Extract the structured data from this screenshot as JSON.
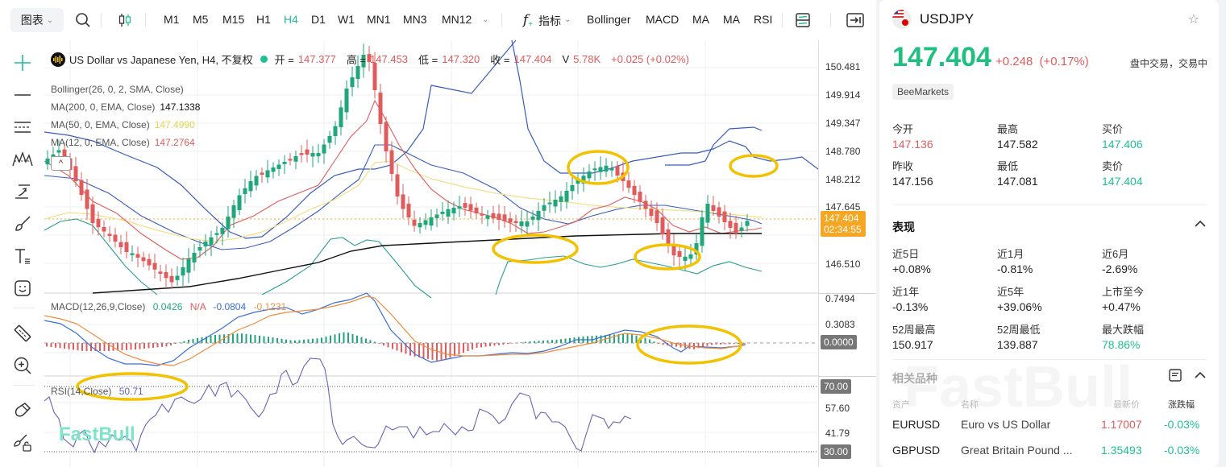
{
  "toolbar": {
    "chart_menu": "图表",
    "timeframes": [
      "M1",
      "M5",
      "M15",
      "H1",
      "H4",
      "D1",
      "W1",
      "MN1",
      "MN3",
      "MN12"
    ],
    "active_timeframe": "H4",
    "indicators_label": "指标",
    "indicator_shortcuts": [
      "Bollinger",
      "MACD",
      "MA",
      "MA",
      "RSI"
    ]
  },
  "legend": {
    "title": "US Dollar vs Japanese Yen, H4, 不复权",
    "open_label": "开 =",
    "open": "147.377",
    "high_label": "高 =",
    "high": "147.453",
    "low_label": "低 =",
    "low": "147.320",
    "close_label": "收 =",
    "close": "147.404",
    "volume_label": "V",
    "volume": "5.78K",
    "change": "+0.025 (+0.02%)"
  },
  "indicators": {
    "bollinger": "Bollinger(26, 0, 2, SMA, Close)",
    "ma200": {
      "label": "MA(200, 0, EMA, Close)",
      "value": "147.1338",
      "color": "#111111"
    },
    "ma50": {
      "label": "MA(50, 0, EMA, Close)",
      "value": "147.4990",
      "color": "#f2e063"
    },
    "ma12": {
      "label": "MA(12, 0, EMA, Close)",
      "value": "147.2764",
      "color": "#e05c5c"
    },
    "macd": {
      "label": "MACD(12,26,9,Close)",
      "hist": "0.0426",
      "na": "N/A",
      "macd": "-0.0804",
      "signal": "-0.1231"
    },
    "rsi": {
      "label": "RSI(14,Close)",
      "value": "50.71"
    }
  },
  "price_axis": {
    "labels": [
      "150.481",
      "149.914",
      "149.347",
      "148.780",
      "148.212",
      "147.645",
      "146.510"
    ],
    "current_price": "147.404",
    "countdown": "02:34:55",
    "macd_labels": [
      "0.7494",
      "0.3083"
    ],
    "macd_zero": "0.0000",
    "rsi_labels": [
      "57.60",
      "41.79"
    ],
    "rsi_upper": "70.00",
    "rsi_lower": "30.00"
  },
  "watermark": "FastBull",
  "colors": {
    "up": "#1fa67a",
    "down": "#e05c5c",
    "accent": "#1fbf94",
    "bollinger": "#3a5bbf",
    "bollinger_lower": "#2a9d8f",
    "annotation": "#f2c200",
    "price_badge": "#f5a623"
  },
  "chart_data": {
    "type": "candlestick",
    "title": "US Dollar vs Japanese Yen, H4",
    "symbol": "USDJPY",
    "timeframe": "H4",
    "ylim": [
      146.2,
      150.8
    ],
    "yticks": [
      146.51,
      147.645,
      148.212,
      148.78,
      149.347,
      149.914,
      150.481
    ],
    "last_ohlc": {
      "open": 147.377,
      "high": 147.453,
      "low": 147.32,
      "close": 147.404,
      "volume": "5.78K"
    },
    "overlays": [
      {
        "name": "MA(200, EMA)",
        "last": 147.1338
      },
      {
        "name": "MA(50, EMA)",
        "last": 147.499
      },
      {
        "name": "MA(12, EMA)",
        "last": 147.2764
      },
      {
        "name": "Bollinger(26,2)"
      }
    ],
    "subcharts": [
      {
        "name": "MACD(12,26,9)",
        "values": {
          "hist": 0.0426,
          "macd": -0.0804,
          "signal": -0.1231
        },
        "yticks": [
          0.7494,
          0.3083,
          0.0
        ]
      },
      {
        "name": "RSI(14)",
        "value": 50.71,
        "levels": [
          70,
          30
        ],
        "yticks": [
          70.0,
          57.6,
          41.79,
          30.0
        ]
      }
    ],
    "annotations": "yellow ellipses highlighting price/indicator regions",
    "grid": true
  },
  "info": {
    "symbol": "USDJPY",
    "price": "147.404",
    "change": "+0.248",
    "change_pct": "(+0.17%)",
    "status": "盘中交易，交易中",
    "broker": "BeeMarkets",
    "quote": [
      {
        "k": "今开",
        "v": "147.136",
        "c": "red"
      },
      {
        "k": "最高",
        "v": "147.582",
        "c": ""
      },
      {
        "k": "买价",
        "v": "147.406",
        "c": "green"
      },
      {
        "k": "昨收",
        "v": "147.156",
        "c": ""
      },
      {
        "k": "最低",
        "v": "147.081",
        "c": ""
      },
      {
        "k": "卖价",
        "v": "147.404",
        "c": "green"
      }
    ],
    "performance_title": "表现",
    "performance": [
      {
        "k": "近5日",
        "v": "+0.08%",
        "c": ""
      },
      {
        "k": "近1月",
        "v": "-0.81%",
        "c": ""
      },
      {
        "k": "近6月",
        "v": "-2.69%",
        "c": ""
      },
      {
        "k": "近1年",
        "v": "-0.13%",
        "c": ""
      },
      {
        "k": "近5年",
        "v": "+39.06%",
        "c": ""
      },
      {
        "k": "上市至今",
        "v": "+0.47%",
        "c": ""
      },
      {
        "k": "52周最高",
        "v": "150.917",
        "c": ""
      },
      {
        "k": "52周最低",
        "v": "139.887",
        "c": ""
      },
      {
        "k": "最大跌幅",
        "v": "78.86%",
        "c": "green"
      }
    ],
    "related_title": "相关品种",
    "related_headers": [
      "资产",
      "名称",
      "最新价",
      "涨跌幅"
    ],
    "related": [
      {
        "asset": "EURUSD",
        "name": "Euro vs US Dollar",
        "price": "1.17007",
        "price_color": "red",
        "chg": "-0.03%"
      },
      {
        "asset": "GBPUSD",
        "name": "Great Britain Pound ...",
        "price": "1.35493",
        "price_color": "green",
        "chg": "-0.03%"
      }
    ]
  }
}
